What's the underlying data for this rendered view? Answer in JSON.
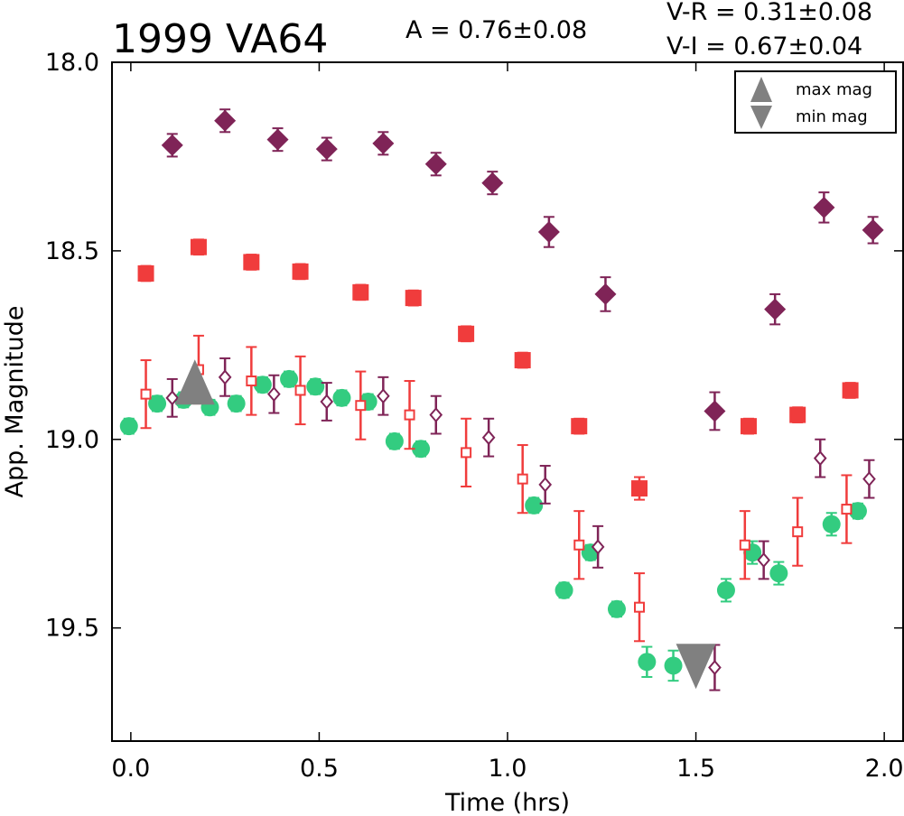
{
  "chart_data": {
    "type": "scatter",
    "title": "1999 VA64",
    "annotations": {
      "amplitude": "A  = 0.76±0.08",
      "color_vr": "V-R = 0.31±0.08",
      "color_vi": "V-I  = 0.67±0.04"
    },
    "xlabel": "Time (hrs)",
    "ylabel": "App. Magnitude",
    "xlim": [
      -0.05,
      2.05
    ],
    "ylim": [
      18.0,
      19.8
    ],
    "y_inverted": true,
    "x_ticks": [
      "0.0",
      "0.5",
      "1.0",
      "1.5",
      "2.0"
    ],
    "y_ticks": [
      "18.0",
      "18.5",
      "19.0",
      "19.5"
    ],
    "x_tick_values": [
      0.0,
      0.5,
      1.0,
      1.5,
      2.0
    ],
    "y_tick_values": [
      18.0,
      18.5,
      19.0,
      19.5
    ],
    "grid": false,
    "legend": {
      "position": "top-right",
      "entries": [
        {
          "label": "max mag",
          "marker": "triangle-up",
          "color": "#808080"
        },
        {
          "label": "min mag",
          "marker": "triangle-down",
          "color": "#808080"
        }
      ]
    },
    "series": [
      {
        "marker": "diamond-filled",
        "color": "#7f2457",
        "points": [
          {
            "x": 0.11,
            "y": 18.22,
            "err": 0.03
          },
          {
            "x": 0.25,
            "y": 18.155,
            "err": 0.03
          },
          {
            "x": 0.39,
            "y": 18.205,
            "err": 0.03
          },
          {
            "x": 0.52,
            "y": 18.23,
            "err": 0.03
          },
          {
            "x": 0.67,
            "y": 18.215,
            "err": 0.03
          },
          {
            "x": 0.81,
            "y": 18.27,
            "err": 0.03
          },
          {
            "x": 0.96,
            "y": 18.32,
            "err": 0.03
          },
          {
            "x": 1.11,
            "y": 18.45,
            "err": 0.04
          },
          {
            "x": 1.26,
            "y": 18.615,
            "err": 0.045
          },
          {
            "x": 1.55,
            "y": 18.925,
            "err": 0.05
          },
          {
            "x": 1.71,
            "y": 18.655,
            "err": 0.04
          },
          {
            "x": 1.84,
            "y": 18.385,
            "err": 0.04
          },
          {
            "x": 1.97,
            "y": 18.445,
            "err": 0.035
          }
        ]
      },
      {
        "marker": "square-filled",
        "color": "#f03c3c",
        "points": [
          {
            "x": 0.04,
            "y": 18.56,
            "err": 0.02
          },
          {
            "x": 0.18,
            "y": 18.49,
            "err": 0.02
          },
          {
            "x": 0.32,
            "y": 18.53,
            "err": 0.02
          },
          {
            "x": 0.45,
            "y": 18.555,
            "err": 0.02
          },
          {
            "x": 0.61,
            "y": 18.61,
            "err": 0.02
          },
          {
            "x": 0.75,
            "y": 18.625,
            "err": 0.02
          },
          {
            "x": 0.89,
            "y": 18.72,
            "err": 0.02
          },
          {
            "x": 1.04,
            "y": 18.79,
            "err": 0.02
          },
          {
            "x": 1.19,
            "y": 18.965,
            "err": 0.02
          },
          {
            "x": 1.35,
            "y": 19.13,
            "err": 0.03
          },
          {
            "x": 1.64,
            "y": 18.965,
            "err": 0.02
          },
          {
            "x": 1.77,
            "y": 18.935,
            "err": 0.02
          },
          {
            "x": 1.91,
            "y": 18.87,
            "err": 0.02
          }
        ]
      },
      {
        "marker": "circle-filled",
        "color": "#33cc80",
        "points": [
          {
            "x": -0.005,
            "y": 18.965,
            "err": 0.02
          },
          {
            "x": 0.07,
            "y": 18.905,
            "err": 0.02
          },
          {
            "x": 0.14,
            "y": 18.895,
            "err": 0.02
          },
          {
            "x": 0.21,
            "y": 18.915,
            "err": 0.02
          },
          {
            "x": 0.28,
            "y": 18.905,
            "err": 0.02
          },
          {
            "x": 0.35,
            "y": 18.855,
            "err": 0.02
          },
          {
            "x": 0.42,
            "y": 18.84,
            "err": 0.02
          },
          {
            "x": 0.49,
            "y": 18.86,
            "err": 0.02
          },
          {
            "x": 0.56,
            "y": 18.89,
            "err": 0.02
          },
          {
            "x": 0.63,
            "y": 18.9,
            "err": 0.02
          },
          {
            "x": 0.7,
            "y": 19.005,
            "err": 0.02
          },
          {
            "x": 0.77,
            "y": 19.025,
            "err": 0.02
          },
          {
            "x": 1.07,
            "y": 19.175,
            "err": 0.02
          },
          {
            "x": 1.15,
            "y": 19.4,
            "err": 0.02
          },
          {
            "x": 1.22,
            "y": 19.3,
            "err": 0.02
          },
          {
            "x": 1.29,
            "y": 19.45,
            "err": 0.02
          },
          {
            "x": 1.37,
            "y": 19.59,
            "err": 0.04
          },
          {
            "x": 1.44,
            "y": 19.6,
            "err": 0.04
          },
          {
            "x": 1.58,
            "y": 19.4,
            "err": 0.03
          },
          {
            "x": 1.65,
            "y": 19.3,
            "err": 0.03
          },
          {
            "x": 1.72,
            "y": 19.355,
            "err": 0.03
          },
          {
            "x": 1.86,
            "y": 19.225,
            "err": 0.03
          },
          {
            "x": 1.93,
            "y": 19.19,
            "err": 0.02
          }
        ]
      },
      {
        "marker": "diamond-open",
        "color": "#7f2457",
        "points": [
          {
            "x": 0.11,
            "y": 18.89,
            "err": 0.05
          },
          {
            "x": 0.25,
            "y": 18.835,
            "err": 0.05
          },
          {
            "x": 0.38,
            "y": 18.88,
            "err": 0.05
          },
          {
            "x": 0.52,
            "y": 18.9,
            "err": 0.05
          },
          {
            "x": 0.67,
            "y": 18.885,
            "err": 0.05
          },
          {
            "x": 0.81,
            "y": 18.935,
            "err": 0.05
          },
          {
            "x": 0.95,
            "y": 18.995,
            "err": 0.05
          },
          {
            "x": 1.1,
            "y": 19.12,
            "err": 0.05
          },
          {
            "x": 1.24,
            "y": 19.285,
            "err": 0.055
          },
          {
            "x": 1.55,
            "y": 19.605,
            "err": 0.06
          },
          {
            "x": 1.68,
            "y": 19.32,
            "err": 0.05
          },
          {
            "x": 1.83,
            "y": 19.05,
            "err": 0.05
          },
          {
            "x": 1.96,
            "y": 19.105,
            "err": 0.05
          }
        ]
      },
      {
        "marker": "square-open",
        "color": "#f03c3c",
        "points": [
          {
            "x": 0.04,
            "y": 18.88,
            "err": 0.09
          },
          {
            "x": 0.18,
            "y": 18.815,
            "err": 0.09
          },
          {
            "x": 0.32,
            "y": 18.845,
            "err": 0.09
          },
          {
            "x": 0.45,
            "y": 18.87,
            "err": 0.09
          },
          {
            "x": 0.61,
            "y": 18.91,
            "err": 0.09
          },
          {
            "x": 0.74,
            "y": 18.935,
            "err": 0.09
          },
          {
            "x": 0.89,
            "y": 19.035,
            "err": 0.09
          },
          {
            "x": 1.04,
            "y": 19.105,
            "err": 0.09
          },
          {
            "x": 1.19,
            "y": 19.28,
            "err": 0.09
          },
          {
            "x": 1.35,
            "y": 19.445,
            "err": 0.09
          },
          {
            "x": 1.63,
            "y": 19.28,
            "err": 0.09
          },
          {
            "x": 1.77,
            "y": 19.245,
            "err": 0.09
          },
          {
            "x": 1.9,
            "y": 19.185,
            "err": 0.09
          }
        ]
      }
    ],
    "extrema_markers": [
      {
        "label": "max mag",
        "x": 0.17,
        "y": 18.86,
        "marker": "triangle-up",
        "color": "#808080"
      },
      {
        "label": "min mag",
        "x": 1.5,
        "y": 19.59,
        "marker": "triangle-down",
        "color": "#808080"
      }
    ]
  }
}
